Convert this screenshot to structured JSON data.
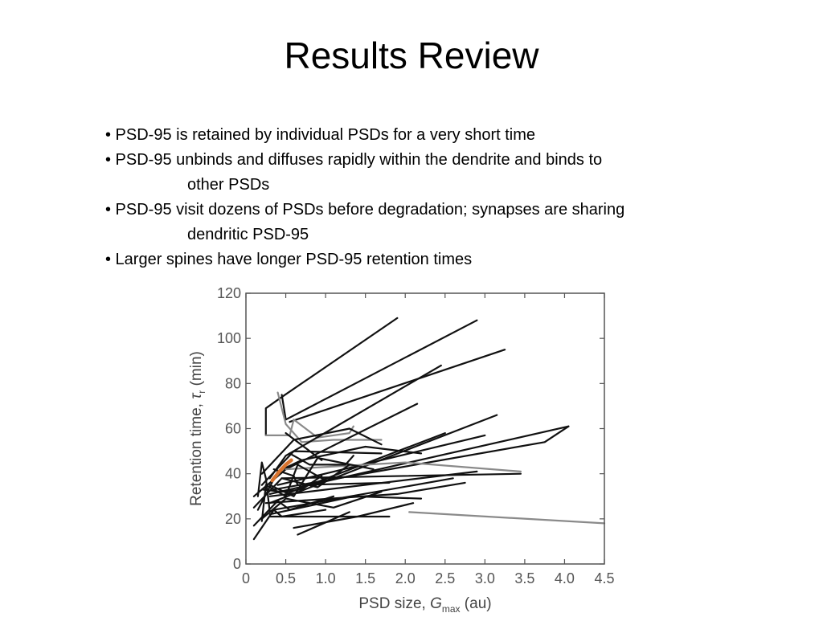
{
  "slide": {
    "title": "Results Review",
    "bullets": [
      {
        "text": "• PSD-95 is retained by individual PSDs for a very short time",
        "cont": ""
      },
      {
        "text": "• PSD-95 unbinds and diffuses rapidly within the dendrite and binds to",
        "cont": "other PSDs"
      },
      {
        "text": "• PSD-95 visit dozens of PSDs before degradation; synapses are sharing",
        "cont": "dendritic PSD-95"
      },
      {
        "text": "• Larger spines have longer PSD-95 retention times",
        "cont": ""
      }
    ]
  },
  "chart_data": {
    "type": "line",
    "xlabel_main": "PSD size, ",
    "xlabel_var": "G",
    "xlabel_sub": "max",
    "xlabel_unit": " (au)",
    "ylabel_main": "Retention time, ",
    "ylabel_var": "τ",
    "ylabel_sub": "r",
    "ylabel_unit": " (min)",
    "xlim": [
      0,
      4.5
    ],
    "ylim": [
      0,
      120
    ],
    "xticks": [
      "0",
      "0.5",
      "1.0",
      "1.5",
      "2.0",
      "2.5",
      "3.0",
      "3.5",
      "4.0",
      "4.5"
    ],
    "yticks": [
      "0",
      "20",
      "40",
      "60",
      "80",
      "100",
      "120"
    ],
    "grid": false,
    "highlight_color": "#d8742f",
    "line_color": "#111111",
    "muted_color": "#8a8a8a",
    "series": [
      {
        "values": [
          [
            0.25,
            57
          ],
          [
            0.25,
            69
          ],
          [
            0.45,
            74
          ],
          [
            1.9,
            109
          ]
        ],
        "style": "dark"
      },
      {
        "values": [
          [
            0.45,
            75
          ],
          [
            0.5,
            64
          ],
          [
            2.9,
            108
          ]
        ],
        "style": "dark"
      },
      {
        "values": [
          [
            0.55,
            63
          ],
          [
            3.25,
            95
          ]
        ],
        "style": "dark"
      },
      {
        "values": [
          [
            0.25,
            57
          ],
          [
            0.55,
            57
          ],
          [
            0.6,
            64
          ],
          [
            0.9,
            56
          ],
          [
            1.3,
            58
          ],
          [
            1.35,
            61
          ]
        ],
        "style": "muted"
      },
      {
        "values": [
          [
            0.4,
            76
          ],
          [
            0.5,
            62
          ],
          [
            0.7,
            54
          ],
          [
            1.1,
            55
          ],
          [
            1.7,
            55
          ]
        ],
        "style": "muted"
      },
      {
        "values": [
          [
            0.3,
            38
          ],
          [
            0.5,
            48
          ],
          [
            2.45,
            88
          ]
        ],
        "style": "dark"
      },
      {
        "values": [
          [
            0.2,
            40
          ],
          [
            0.6,
            55
          ],
          [
            1.3,
            60
          ],
          [
            1.7,
            53
          ]
        ],
        "style": "dark"
      },
      {
        "values": [
          [
            0.1,
            30
          ],
          [
            0.5,
            42
          ],
          [
            2.15,
            71
          ]
        ],
        "style": "dark"
      },
      {
        "values": [
          [
            0.15,
            24
          ],
          [
            0.4,
            41
          ],
          [
            0.7,
            46
          ],
          [
            1.5,
            52
          ],
          [
            2.2,
            49
          ]
        ],
        "style": "dark"
      },
      {
        "values": [
          [
            0.2,
            35
          ],
          [
            0.6,
            50
          ],
          [
            1.7,
            49
          ]
        ],
        "style": "dark"
      },
      {
        "values": [
          [
            0.3,
            31
          ],
          [
            4.05,
            61
          ]
        ],
        "style": "dark"
      },
      {
        "values": [
          [
            0.35,
            33
          ],
          [
            3.75,
            54
          ],
          [
            4.05,
            61
          ]
        ],
        "style": "dark"
      },
      {
        "values": [
          [
            0.4,
            35
          ],
          [
            3.0,
            57
          ]
        ],
        "style": "dark"
      },
      {
        "values": [
          [
            0.3,
            27
          ],
          [
            3.15,
            66
          ]
        ],
        "style": "dark"
      },
      {
        "values": [
          [
            0.5,
            31
          ],
          [
            2.5,
            58
          ]
        ],
        "style": "dark"
      },
      {
        "values": [
          [
            0.45,
            38
          ],
          [
            3.45,
            40
          ]
        ],
        "style": "dark"
      },
      {
        "values": [
          [
            0.5,
            42
          ],
          [
            2.0,
            45
          ],
          [
            3.45,
            41
          ]
        ],
        "style": "muted"
      },
      {
        "values": [
          [
            0.3,
            30
          ],
          [
            2.9,
            41
          ]
        ],
        "style": "dark"
      },
      {
        "values": [
          [
            0.35,
            24
          ],
          [
            2.6,
            38
          ]
        ],
        "style": "dark"
      },
      {
        "values": [
          [
            0.25,
            27
          ],
          [
            1.9,
            31
          ],
          [
            2.75,
            36
          ]
        ],
        "style": "dark"
      },
      {
        "values": [
          [
            0.3,
            22
          ],
          [
            1.35,
            30
          ],
          [
            2.2,
            29
          ]
        ],
        "style": "dark"
      },
      {
        "values": [
          [
            0.2,
            20
          ],
          [
            0.5,
            29
          ],
          [
            1.1,
            25
          ],
          [
            1.7,
            32
          ]
        ],
        "style": "dark"
      },
      {
        "values": [
          [
            0.3,
            21
          ],
          [
            1.8,
            21
          ]
        ],
        "style": "dark"
      },
      {
        "values": [
          [
            0.6,
            16
          ],
          [
            1.4,
            21
          ],
          [
            2.1,
            27
          ]
        ],
        "style": "dark"
      },
      {
        "values": [
          [
            0.65,
            13
          ],
          [
            1.3,
            23
          ]
        ],
        "style": "dark"
      },
      {
        "values": [
          [
            0.1,
            17
          ],
          [
            0.4,
            28
          ],
          [
            0.55,
            24
          ],
          [
            1.1,
            30
          ]
        ],
        "style": "dark"
      },
      {
        "values": [
          [
            0.1,
            11
          ],
          [
            0.35,
            24
          ],
          [
            0.45,
            21
          ],
          [
            1.0,
            24
          ]
        ],
        "style": "dark"
      },
      {
        "values": [
          [
            0.1,
            25
          ],
          [
            0.45,
            38
          ],
          [
            0.9,
            34
          ],
          [
            1.3,
            44
          ]
        ],
        "style": "dark"
      },
      {
        "values": [
          [
            0.3,
            35
          ],
          [
            0.6,
            30
          ],
          [
            0.9,
            47
          ],
          [
            1.6,
            42
          ]
        ],
        "style": "dark"
      },
      {
        "values": [
          [
            0.2,
            19
          ],
          [
            0.25,
            35
          ],
          [
            0.5,
            30
          ],
          [
            0.65,
            44
          ],
          [
            1.0,
            37
          ]
        ],
        "style": "dark"
      },
      {
        "values": [
          [
            0.55,
            49
          ],
          [
            0.8,
            44
          ],
          [
            1.25,
            44
          ],
          [
            1.35,
            48
          ]
        ],
        "style": "dark"
      },
      {
        "values": [
          [
            0.35,
            42
          ],
          [
            0.6,
            39
          ],
          [
            0.65,
            35
          ],
          [
            1.8,
            36
          ]
        ],
        "style": "dark"
      },
      {
        "values": [
          [
            0.2,
            33
          ],
          [
            0.45,
            32
          ],
          [
            0.7,
            33
          ],
          [
            0.95,
            39
          ]
        ],
        "style": "dark"
      },
      {
        "values": [
          [
            0.5,
            58
          ],
          [
            0.95,
            46
          ]
        ],
        "style": "dark"
      },
      {
        "values": [
          [
            0.15,
            30
          ],
          [
            0.2,
            45
          ],
          [
            0.25,
            38
          ],
          [
            0.3,
            23
          ]
        ],
        "style": "dark"
      },
      {
        "values": [
          [
            2.05,
            23
          ],
          [
            4.5,
            18
          ]
        ],
        "style": "muted"
      },
      {
        "values": [
          [
            0.33,
            37
          ],
          [
            0.42,
            41
          ],
          [
            0.5,
            44
          ],
          [
            0.57,
            46
          ]
        ],
        "style": "highlight"
      }
    ]
  }
}
